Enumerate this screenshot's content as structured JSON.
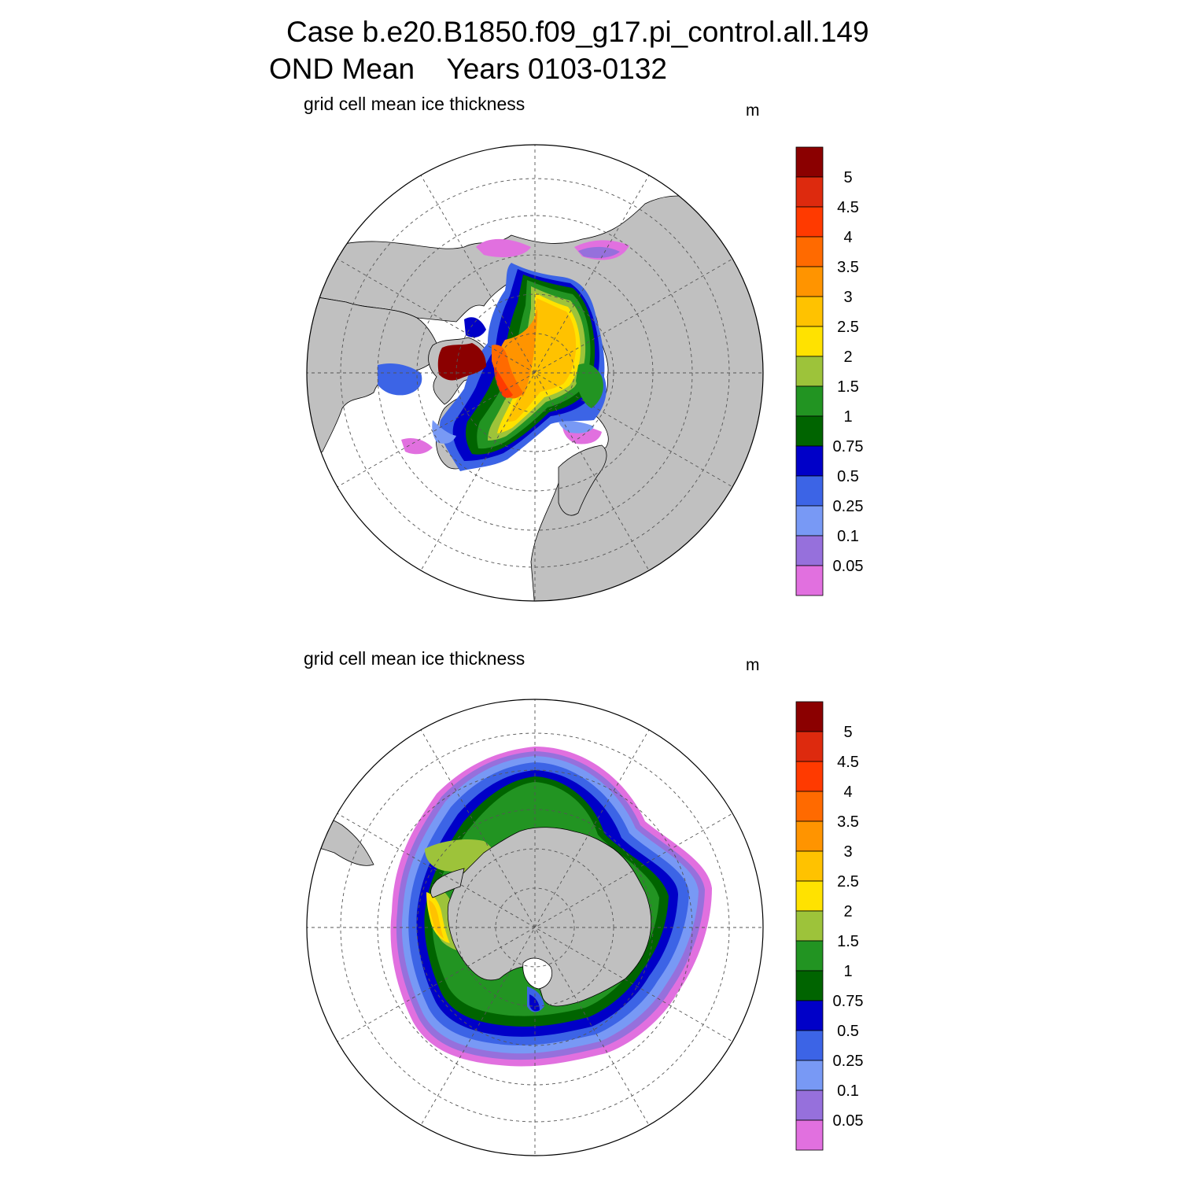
{
  "header": {
    "line1": "Case b.e20.B1850.f09_g17.pi_control.all.149",
    "line2": "OND Mean    Years 0103-0132"
  },
  "panels": [
    {
      "id": "arctic",
      "label": "grid cell mean ice thickness",
      "units": "m"
    },
    {
      "id": "antarctic",
      "label": "grid cell mean ice thickness",
      "units": "m"
    }
  ],
  "colorbar": {
    "labels": [
      "5",
      "4.5",
      "4",
      "3.5",
      "3",
      "2.5",
      "2",
      "1.5",
      "1",
      "0.75",
      "0.5",
      "0.25",
      "0.1",
      "0.05"
    ],
    "colors_top_to_bottom": [
      "#8b0000",
      "#dd2a0e",
      "#ff3a00",
      "#ff6a00",
      "#ff9400",
      "#ffc200",
      "#ffe200",
      "#9dc33a",
      "#229422",
      "#006400",
      "#0000c8",
      "#3c64e6",
      "#7899f5",
      "#9670dc",
      "#e170df"
    ]
  },
  "colors": {
    "land": "#c0c0c0",
    "ocean": "#ffffff",
    "grid": "#555555"
  }
}
